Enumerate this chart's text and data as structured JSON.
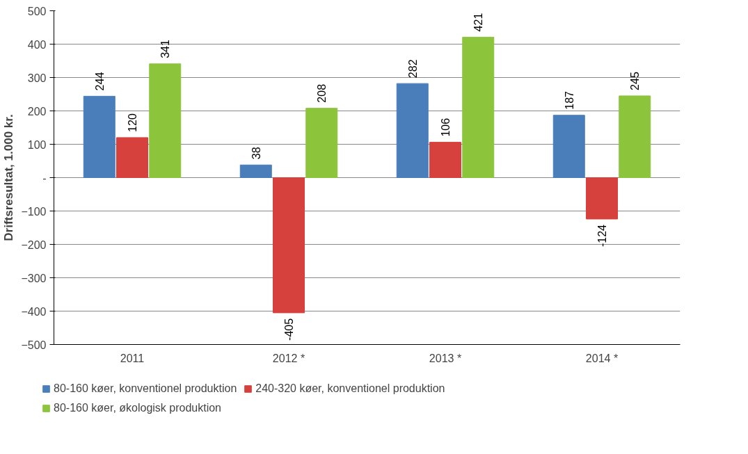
{
  "chart_data": {
    "type": "bar",
    "ylabel": "Driftsresultat, 1.000 kr.",
    "categories": [
      "2011",
      "2012 *",
      "2013 *",
      "2014 *"
    ],
    "series": [
      {
        "name": "80-160 køer, konventionel produktion",
        "color": "#4a7ebb",
        "values": [
          244,
          38,
          282,
          187
        ]
      },
      {
        "name": "240-320 køer, konventionel produktion",
        "color": "#d6403d",
        "values": [
          120,
          -405,
          106,
          -124
        ]
      },
      {
        "name": "80-160 køer, økologisk produktion",
        "color": "#8cc43c",
        "values": [
          341,
          208,
          421,
          245
        ]
      }
    ],
    "ylim": [
      -500,
      500
    ],
    "yticks": [
      -500,
      -400,
      -300,
      -200,
      -100,
      {
        "value": 0,
        "label": "-"
      },
      100,
      200,
      300,
      400,
      500
    ],
    "grid": "y",
    "legend": "bottom",
    "data_labels": true
  }
}
